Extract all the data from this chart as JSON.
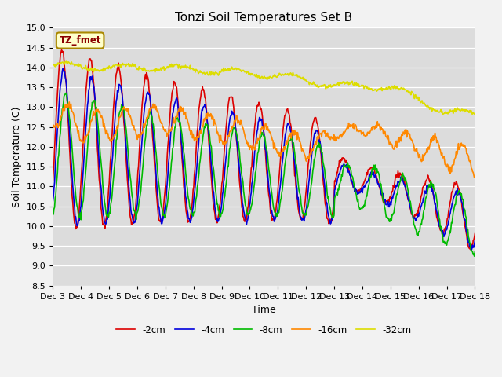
{
  "title": "Tonzi Soil Temperatures Set B",
  "xlabel": "Time",
  "ylabel": "Soil Temperature (C)",
  "ylim": [
    8.5,
    15.0
  ],
  "legend_entries": [
    "-2cm",
    "-4cm",
    "-8cm",
    "-16cm",
    "-32cm"
  ],
  "legend_colors": [
    "#dd0000",
    "#0000dd",
    "#00bb00",
    "#ff8800",
    "#dddd00"
  ],
  "annotation_label": "TZ_fmet",
  "x_tick_labels": [
    "Dec 3",
    "Dec 4",
    "Dec 5",
    "Dec 6",
    "Dec 7",
    "Dec 8",
    "Dec 9",
    "Dec 10",
    "Dec 11",
    "Dec 12",
    "Dec 13",
    "Dec 14",
    "Dec 15",
    "Dec 16",
    "Dec 17",
    "Dec 18"
  ],
  "ytick_values": [
    8.5,
    9.0,
    9.5,
    10.0,
    10.5,
    11.0,
    11.5,
    12.0,
    12.5,
    13.0,
    13.5,
    14.0,
    14.5,
    15.0
  ]
}
